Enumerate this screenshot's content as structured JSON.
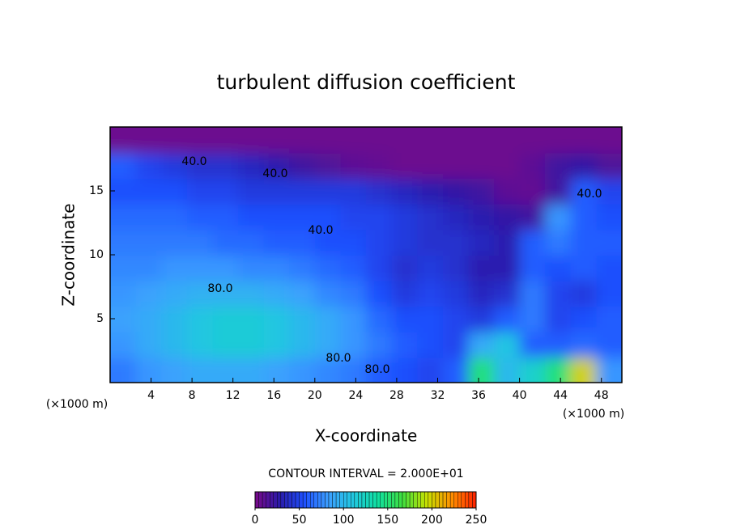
{
  "chart_data": {
    "type": "contour",
    "title": "turbulent diffusion coefficient",
    "x_label": "X-coordinate",
    "y_label": "Z-coordinate",
    "x_unit_label": "(×1000 m)",
    "contour_interval_label": "CONTOUR INTERVAL = 2.000E+01",
    "xlim": [
      0,
      50
    ],
    "ylim": [
      0,
      20
    ],
    "xticks": [
      4,
      8,
      12,
      16,
      20,
      24,
      28,
      32,
      36,
      40,
      44,
      48
    ],
    "yticks": [
      5,
      10,
      15
    ],
    "clim": [
      0,
      250
    ],
    "cticks": [
      0,
      50,
      100,
      150,
      200,
      250
    ],
    "colormap": [
      "#7a0a8a",
      "#2a1aa8",
      "#1e50ff",
      "#3ca0ff",
      "#20c8e0",
      "#10e0a0",
      "#40e040",
      "#c8e000",
      "#ff9000",
      "#ff2000"
    ],
    "z": [
      [
        70,
        80,
        85,
        90,
        90,
        90,
        85,
        80,
        75,
        70,
        60,
        55,
        50,
        60,
        150,
        100,
        120,
        150,
        200,
        80
      ],
      [
        80,
        90,
        100,
        110,
        115,
        115,
        110,
        100,
        90,
        80,
        70,
        60,
        55,
        50,
        90,
        110,
        60,
        60,
        65,
        60
      ],
      [
        85,
        90,
        100,
        110,
        115,
        115,
        110,
        100,
        90,
        80,
        65,
        55,
        55,
        50,
        45,
        60,
        70,
        50,
        55,
        60
      ],
      [
        80,
        85,
        90,
        95,
        95,
        95,
        90,
        85,
        75,
        70,
        55,
        45,
        50,
        45,
        35,
        40,
        70,
        50,
        45,
        55
      ],
      [
        75,
        75,
        80,
        80,
        80,
        75,
        75,
        70,
        65,
        60,
        50,
        40,
        45,
        40,
        30,
        30,
        60,
        55,
        60,
        55
      ],
      [
        70,
        70,
        70,
        70,
        65,
        65,
        60,
        60,
        55,
        55,
        50,
        45,
        40,
        40,
        35,
        30,
        60,
        70,
        60,
        60
      ],
      [
        65,
        65,
        65,
        60,
        60,
        55,
        55,
        55,
        55,
        50,
        50,
        45,
        40,
        35,
        30,
        25,
        20,
        80,
        60,
        55
      ],
      [
        55,
        55,
        55,
        50,
        50,
        45,
        45,
        45,
        45,
        45,
        40,
        35,
        30,
        25,
        20,
        10,
        8,
        20,
        60,
        50
      ],
      [
        60,
        50,
        45,
        40,
        40,
        35,
        30,
        20,
        15,
        10,
        8,
        5,
        5,
        5,
        5,
        5,
        10,
        20,
        25,
        15
      ],
      [
        5,
        5,
        5,
        5,
        5,
        5,
        5,
        5,
        5,
        5,
        5,
        5,
        5,
        5,
        5,
        5,
        5,
        5,
        5,
        5
      ]
    ],
    "contour_labels": [
      {
        "value": 40,
        "label": "40.0"
      },
      {
        "value": 40,
        "label": "40.0"
      },
      {
        "value": 40,
        "label": "40.0"
      },
      {
        "value": 80,
        "label": "80.0"
      },
      {
        "value": 80,
        "label": "80.0"
      },
      {
        "value": 80,
        "label": "80.0"
      },
      {
        "value": 40,
        "label": "40.0"
      }
    ]
  }
}
